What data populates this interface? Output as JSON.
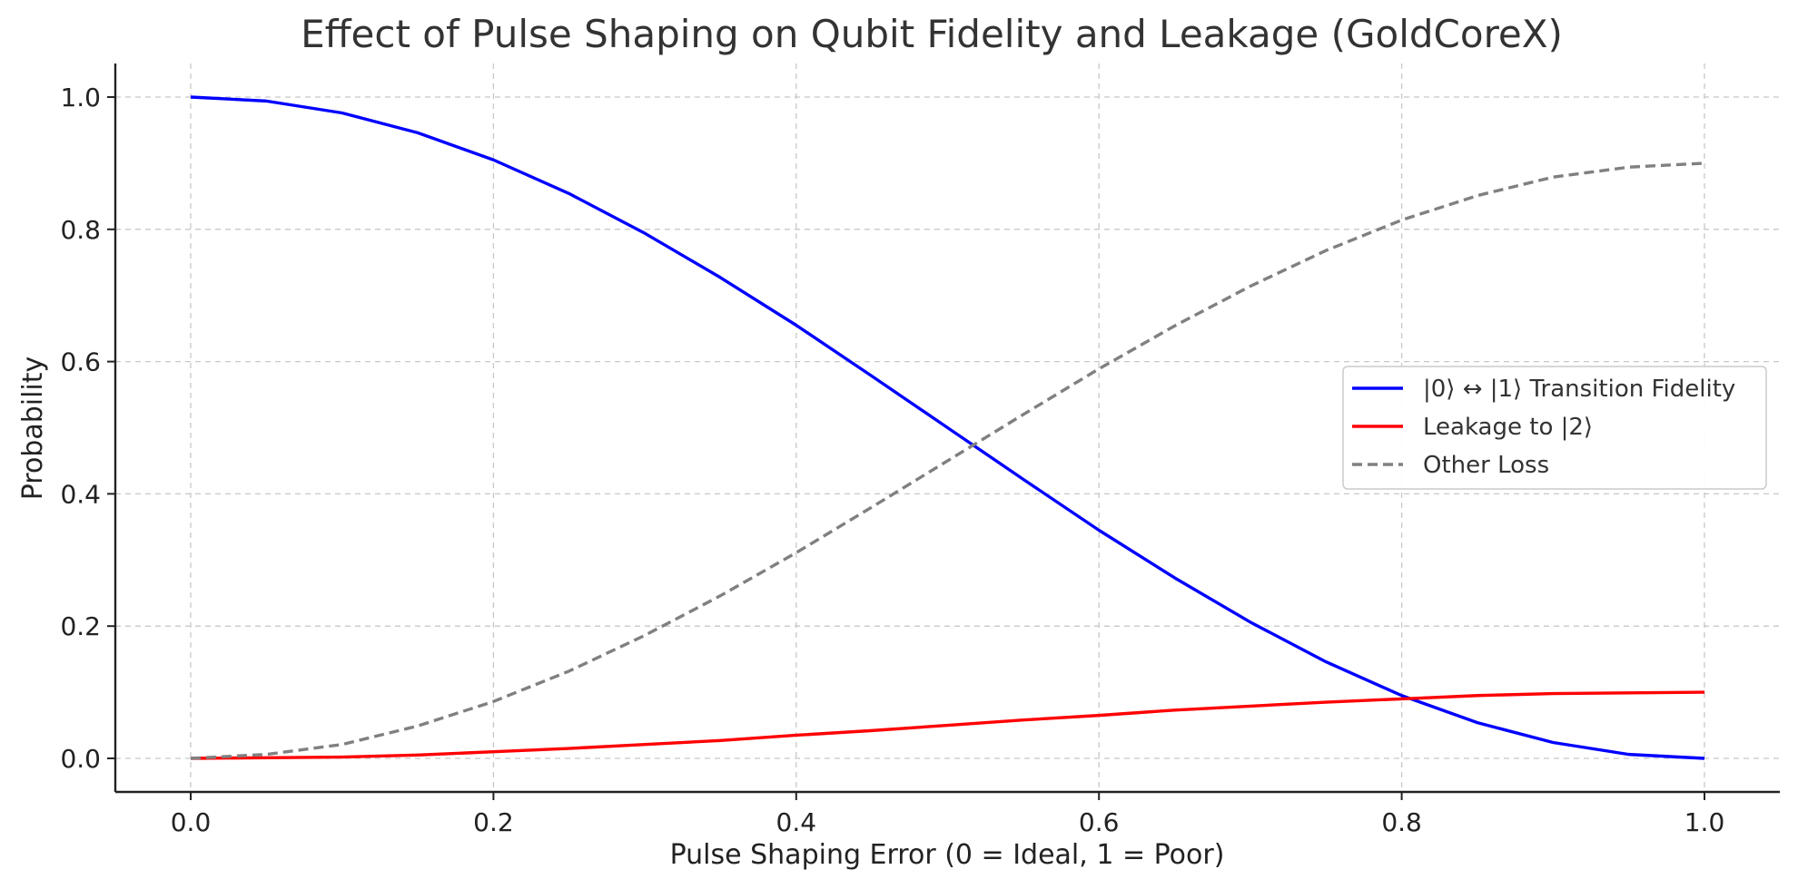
{
  "chart_data": {
    "type": "line",
    "title": "Effect of Pulse Shaping on Qubit Fidelity and Leakage (GoldCoreX)",
    "xlabel": "Pulse Shaping Error (0 = Ideal, 1 = Poor)",
    "ylabel": "Probability",
    "xlim": [
      -0.05,
      1.05
    ],
    "ylim": [
      -0.05,
      1.05
    ],
    "grid": true,
    "legend_position": "center-right",
    "x_ticks": [
      0.0,
      0.2,
      0.4,
      0.6,
      0.8,
      1.0
    ],
    "x_tick_labels": [
      "0.0",
      "0.2",
      "0.4",
      "0.6",
      "0.8",
      "1.0"
    ],
    "y_ticks": [
      0.0,
      0.2,
      0.4,
      0.6,
      0.8,
      1.0
    ],
    "y_tick_labels": [
      "0.0",
      "0.2",
      "0.4",
      "0.6",
      "0.8",
      "1.0"
    ],
    "x": [
      0.0,
      0.05,
      0.1,
      0.15,
      0.2,
      0.25,
      0.3,
      0.35,
      0.4,
      0.45,
      0.5,
      0.55,
      0.6,
      0.65,
      0.7,
      0.75,
      0.8,
      0.85,
      0.9,
      0.95,
      1.0
    ],
    "series": [
      {
        "name": "|0⟩ ↔ |1⟩ Transition Fidelity",
        "color": "#0000ff",
        "dash": "solid",
        "values": [
          1.0,
          0.994,
          0.976,
          0.946,
          0.905,
          0.854,
          0.794,
          0.727,
          0.655,
          0.578,
          0.5,
          0.422,
          0.345,
          0.273,
          0.206,
          0.146,
          0.095,
          0.054,
          0.024,
          0.006,
          0.0
        ]
      },
      {
        "name": "Leakage to |2⟩",
        "color": "#ff0000",
        "dash": "solid",
        "values": [
          0.0,
          0.001,
          0.002,
          0.005,
          0.01,
          0.015,
          0.021,
          0.027,
          0.035,
          0.042,
          0.05,
          0.058,
          0.065,
          0.073,
          0.079,
          0.085,
          0.09,
          0.095,
          0.098,
          0.099,
          0.1
        ]
      },
      {
        "name": "Other Loss",
        "color": "#808080",
        "dash": "dashed",
        "values": [
          0.0,
          0.006,
          0.021,
          0.049,
          0.086,
          0.132,
          0.186,
          0.246,
          0.311,
          0.38,
          0.45,
          0.52,
          0.589,
          0.654,
          0.714,
          0.768,
          0.814,
          0.851,
          0.879,
          0.894,
          0.9
        ]
      }
    ]
  }
}
